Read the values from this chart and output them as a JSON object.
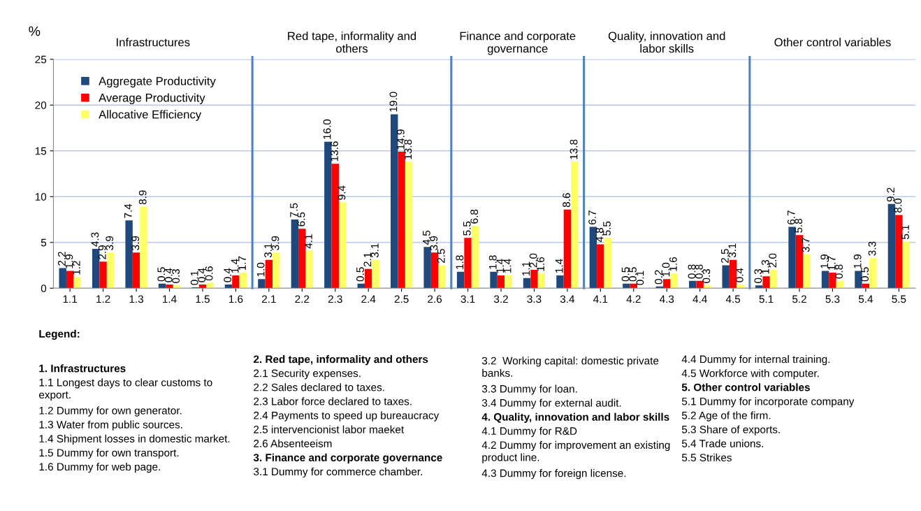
{
  "chart_data": {
    "type": "bar",
    "categories": [
      "1.1",
      "1.2",
      "1.3",
      "1.4",
      "1.5",
      "1.6",
      "2.1",
      "2.2",
      "2.3",
      "2.4",
      "2.5",
      "2.6",
      "3.1",
      "3.2",
      "3.3",
      "3.4",
      "4.1",
      "4.2",
      "4.3",
      "4.4",
      "4.5",
      "5.1",
      "5.2",
      "5.3",
      "5.4",
      "5.5"
    ],
    "series": [
      {
        "name": "Aggregate Productivity",
        "color": "#1f497d",
        "values": [
          2.2,
          4.3,
          7.4,
          0.5,
          0.1,
          0.4,
          1.0,
          7.5,
          16.0,
          0.5,
          19.0,
          4.5,
          1.8,
          1.8,
          1.1,
          1.4,
          6.7,
          0.5,
          0.2,
          0.8,
          2.5,
          0.3,
          6.7,
          1.9,
          1.9,
          9.2
        ],
        "value_labels": [
          "2.2",
          "4.3",
          "7.4",
          "0.5",
          "0.1",
          "0.4",
          "1.0",
          "7.5",
          "16.0",
          "0.5",
          "19.0",
          "4.5",
          "1.8",
          "1.8",
          "1.1",
          "1.4",
          "6.7",
          "0.5",
          "0.2",
          "0.8",
          "2.5",
          "0.3",
          "6.7",
          "1.9",
          "1.9",
          "9.2"
        ]
      },
      {
        "name": "Average Productivity",
        "color": "#ff0000",
        "values": [
          1.9,
          2.9,
          3.9,
          0.4,
          0.4,
          1.4,
          3.1,
          6.5,
          13.6,
          2.1,
          14.9,
          3.9,
          5.5,
          1.4,
          2.0,
          8.6,
          4.8,
          0.5,
          1.0,
          0.8,
          3.1,
          1.3,
          5.8,
          1.7,
          0.5,
          8.0
        ],
        "value_labels": [
          "1.9",
          "2.9",
          "3.9",
          "0.4",
          "0.4",
          "1.4",
          "3.1",
          "6.5",
          "13.6",
          "2.1",
          "14.9",
          "3.9",
          "5.5",
          "1.4",
          "2.0",
          "8.6",
          "4.8",
          "0.5",
          "1.0",
          "0.8",
          "3.1",
          "1.3",
          "5.8",
          "1.7",
          "0.5",
          "8.0"
        ]
      },
      {
        "name": "Allocative Efficiency",
        "color": "#ffff66",
        "values": [
          1.2,
          3.9,
          8.9,
          0.3,
          0.6,
          1.7,
          3.9,
          4.1,
          9.4,
          3.1,
          13.8,
          2.5,
          6.8,
          1.4,
          1.6,
          13.8,
          5.5,
          0.1,
          1.6,
          0.3,
          0.4,
          2.0,
          3.7,
          0.8,
          3.3,
          5.1
        ],
        "value_labels": [
          "1.2",
          "3.9",
          "8.9",
          "0.3",
          "0.6",
          "1.7",
          "3.9",
          "4.1",
          "9.4",
          "3.1",
          "13.8",
          "2.5",
          "6.8",
          "1.4",
          "1.6",
          "13.8",
          "5.5",
          "0.1",
          "1.6",
          "0.3",
          "0.4",
          "2.0",
          "3.7",
          "0.8",
          "3.3",
          "5.1"
        ]
      }
    ],
    "ylabel": "%",
    "ylim": [
      0,
      25
    ],
    "yticks": [
      0,
      5,
      10,
      15,
      20,
      25
    ],
    "grid": "y",
    "legend": "top left",
    "annotations": [
      "Infrastructures",
      "Red tape, informality and\nothers",
      "Finance and corporate\ngovernance",
      "Quality, innovation and\nlabor skills",
      "Other control variables",
      "Legend:",
      "1. Infrastructures",
      "1.1 Longest days to clear customs to\nexport.",
      "1.2 Dummy for own generator.",
      "1.3 Water from public sources.",
      "1.4 Shipment losses in domestic market.",
      "1.5 Dummy for own transport.",
      "1.6 Dummy for web page.",
      "2. Red tape, informality and others",
      "2.1 Security expenses.",
      "2.2 Sales declared to taxes.",
      "2.3 Labor force declared to taxes.",
      "2.4 Payments to speed up bureaucracy",
      "2.5 intervencionist labor maeket",
      "2.6 Absenteeism",
      "3. Finance and corporate governance",
      "3.1 Dummy for commerce chamber.",
      "3.2  Working capital: domestic private\nbanks.",
      "3.3 Dummy for loan.",
      "3.4 Dummy for external audit.",
      "4. Quality, innovation and labor skills",
      "4.1 Dummy for R&D",
      "4.2 Dummy for improvement an existing\nproduct line.",
      "4.3 Dummy for foreign license.",
      "4.4 Dummy for internal training.",
      "4.5 Workforce with computer.",
      "5. Other control variables",
      "5.1 Dummy for incorporate company",
      "5.2 Age of the firm.",
      "5.3 Share of exports.",
      "5.4 Trade unions.",
      "5.5 Strikes"
    ]
  }
}
